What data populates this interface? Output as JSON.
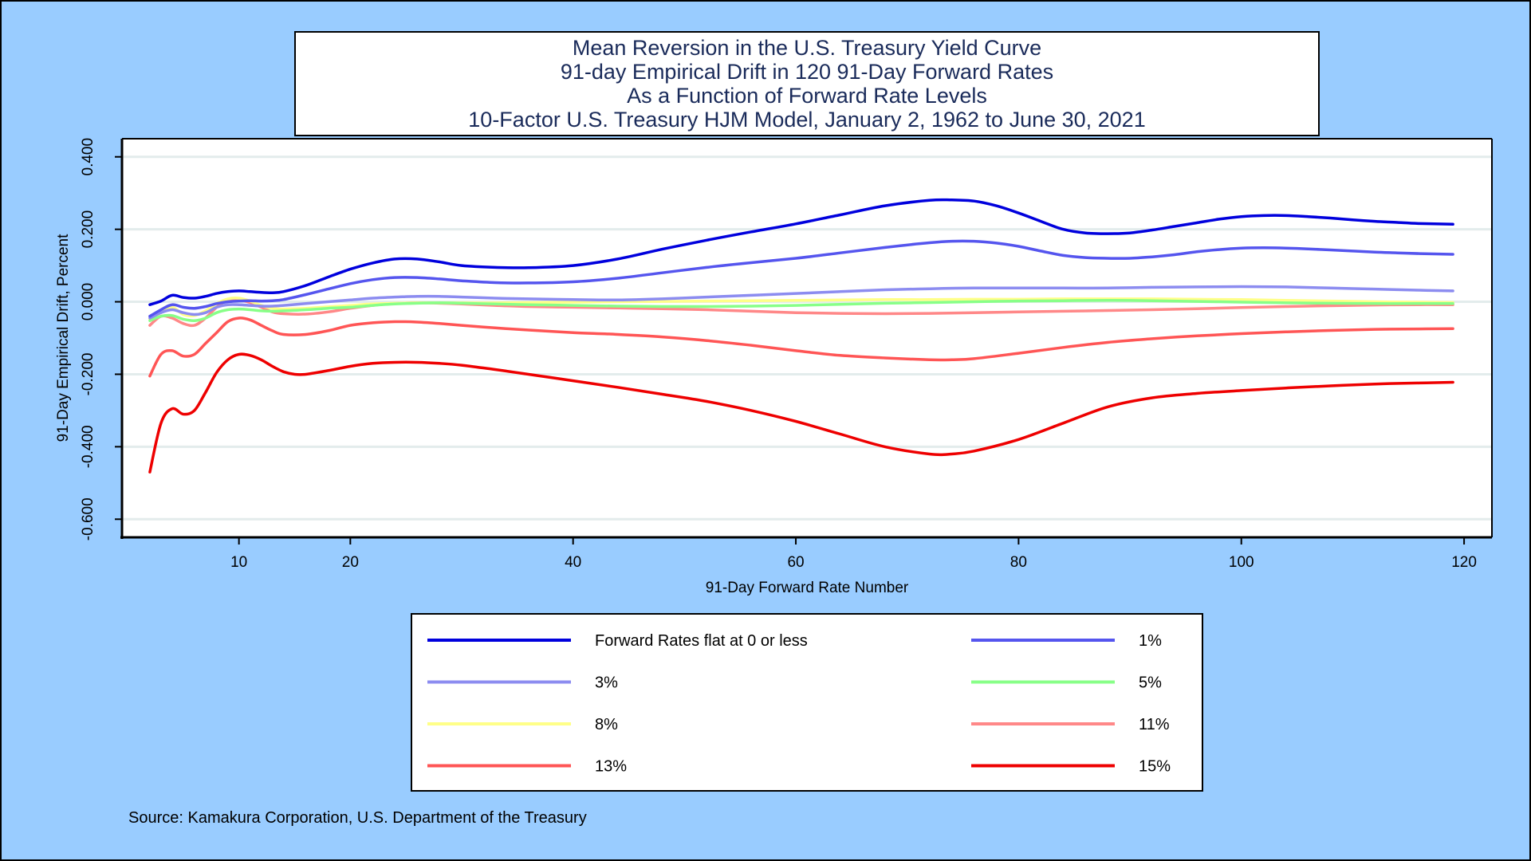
{
  "chart_data": {
    "type": "line",
    "title_lines": [
      "Mean Reversion in the U.S. Treasury Yield Curve",
      "91-day Empirical Drift in 120 91-Day Forward Rates",
      "As a Function of Forward Rate Levels",
      "10-Factor U.S. Treasury HJM Model, January 2, 1962 to June 30, 2021"
    ],
    "xlabel": "91-Day Forward Rate Number",
    "ylabel": "91-Day Empirical Drift, Percent",
    "xlim": [
      -0.5,
      122.5
    ],
    "ylim": [
      -0.65,
      0.45
    ],
    "xticks": [
      10,
      20,
      40,
      60,
      80,
      100,
      120
    ],
    "xtick_labels": [
      "10",
      "20",
      "40",
      "60",
      "80",
      "100",
      "120"
    ],
    "yticks": [
      0.4,
      0.2,
      0.0,
      -0.2,
      -0.4,
      -0.6
    ],
    "ytick_labels": [
      "0.400",
      "0.200",
      "0.000",
      "-0.200",
      "-0.400",
      "-0.600"
    ],
    "grid": "horizontal",
    "source": "Source: Kamakura Corporation, U.S. Department of the Treasury",
    "series": [
      {
        "name": "Forward Rates flat at 0 or less",
        "color": "#0000dd",
        "x": [
          2,
          3,
          4,
          5,
          6,
          7,
          8,
          9,
          10,
          11,
          12,
          13,
          14,
          16,
          18,
          20,
          22,
          24,
          26,
          28,
          30,
          33,
          36,
          40,
          44,
          48,
          52,
          56,
          60,
          64,
          68,
          72,
          74,
          76,
          78,
          80,
          82,
          84,
          86,
          88,
          90,
          92,
          94,
          96,
          98,
          100,
          102,
          104,
          106,
          108,
          110,
          112,
          114,
          116,
          119
        ],
        "y": [
          -0.008,
          0.002,
          0.018,
          0.012,
          0.01,
          0.015,
          0.023,
          0.028,
          0.03,
          0.028,
          0.026,
          0.025,
          0.028,
          0.045,
          0.068,
          0.09,
          0.107,
          0.118,
          0.118,
          0.11,
          0.1,
          0.095,
          0.094,
          0.1,
          0.118,
          0.145,
          0.17,
          0.193,
          0.215,
          0.24,
          0.265,
          0.28,
          0.281,
          0.278,
          0.265,
          0.245,
          0.222,
          0.2,
          0.19,
          0.188,
          0.19,
          0.198,
          0.208,
          0.218,
          0.228,
          0.235,
          0.238,
          0.238,
          0.235,
          0.231,
          0.226,
          0.222,
          0.219,
          0.216,
          0.214
        ]
      },
      {
        "name": "1%",
        "color": "#5555ee",
        "x": [
          2,
          3,
          4,
          5,
          6,
          7,
          8,
          9,
          10,
          11,
          12,
          13,
          14,
          16,
          18,
          20,
          22,
          24,
          26,
          28,
          30,
          33,
          36,
          40,
          44,
          48,
          52,
          56,
          60,
          64,
          68,
          72,
          74,
          76,
          78,
          80,
          82,
          84,
          86,
          88,
          90,
          92,
          94,
          96,
          98,
          100,
          102,
          104,
          106,
          108,
          110,
          112,
          114,
          116,
          119
        ],
        "y": [
          -0.04,
          -0.022,
          -0.008,
          -0.015,
          -0.018,
          -0.013,
          -0.005,
          0.0,
          0.002,
          0.003,
          0.002,
          0.003,
          0.006,
          0.02,
          0.035,
          0.05,
          0.061,
          0.067,
          0.067,
          0.063,
          0.058,
          0.053,
          0.052,
          0.055,
          0.065,
          0.08,
          0.095,
          0.108,
          0.12,
          0.135,
          0.15,
          0.163,
          0.167,
          0.167,
          0.162,
          0.153,
          0.14,
          0.128,
          0.122,
          0.12,
          0.12,
          0.124,
          0.13,
          0.138,
          0.144,
          0.148,
          0.149,
          0.148,
          0.146,
          0.143,
          0.14,
          0.137,
          0.135,
          0.133,
          0.131
        ]
      },
      {
        "name": "3%",
        "color": "#8c8cf0",
        "x": [
          2,
          3,
          4,
          5,
          6,
          7,
          8,
          9,
          10,
          11,
          12,
          13,
          14,
          16,
          18,
          20,
          22,
          24,
          26,
          28,
          30,
          33,
          36,
          40,
          44,
          48,
          52,
          56,
          60,
          64,
          68,
          72,
          76,
          80,
          84,
          88,
          92,
          96,
          100,
          104,
          108,
          112,
          116,
          119
        ],
        "y": [
          -0.045,
          -0.03,
          -0.022,
          -0.03,
          -0.035,
          -0.03,
          -0.015,
          -0.008,
          -0.008,
          -0.01,
          -0.012,
          -0.012,
          -0.01,
          -0.005,
          0.0,
          0.005,
          0.01,
          0.013,
          0.015,
          0.015,
          0.013,
          0.01,
          0.008,
          0.006,
          0.005,
          0.008,
          0.013,
          0.018,
          0.023,
          0.028,
          0.033,
          0.036,
          0.038,
          0.038,
          0.038,
          0.038,
          0.04,
          0.041,
          0.042,
          0.041,
          0.038,
          0.035,
          0.032,
          0.03
        ]
      },
      {
        "name": "5%",
        "color": "#88ff88",
        "x": [
          2,
          3,
          4,
          5,
          6,
          7,
          8,
          9,
          10,
          11,
          12,
          13,
          14,
          16,
          18,
          20,
          22,
          24,
          26,
          28,
          30,
          33,
          36,
          40,
          44,
          48,
          52,
          56,
          60,
          64,
          68,
          72,
          76,
          80,
          84,
          88,
          92,
          96,
          100,
          104,
          108,
          112,
          116,
          119
        ],
        "y": [
          -0.052,
          -0.04,
          -0.038,
          -0.048,
          -0.052,
          -0.045,
          -0.03,
          -0.022,
          -0.02,
          -0.022,
          -0.025,
          -0.026,
          -0.025,
          -0.022,
          -0.018,
          -0.015,
          -0.01,
          -0.006,
          -0.004,
          -0.003,
          -0.004,
          -0.006,
          -0.008,
          -0.01,
          -0.012,
          -0.013,
          -0.013,
          -0.012,
          -0.01,
          -0.007,
          -0.004,
          -0.002,
          0.0,
          0.002,
          0.003,
          0.004,
          0.003,
          0.001,
          -0.001,
          -0.003,
          -0.004,
          -0.005,
          -0.005,
          -0.005
        ]
      },
      {
        "name": "8%",
        "color": "#ffff88",
        "x": [
          2,
          3,
          4,
          5,
          6,
          7,
          8,
          9,
          10,
          11,
          12,
          13,
          14,
          16,
          18,
          20,
          22,
          24,
          26,
          28,
          30,
          33,
          36,
          40,
          44,
          48,
          52,
          56,
          60,
          64,
          68,
          72,
          76,
          80,
          84,
          88,
          92,
          96,
          100,
          104,
          108,
          112,
          116,
          119
        ],
        "y": [
          -0.048,
          -0.03,
          -0.015,
          -0.035,
          -0.038,
          -0.025,
          -0.005,
          0.008,
          0.01,
          0.002,
          -0.01,
          -0.018,
          -0.02,
          -0.018,
          -0.014,
          -0.01,
          -0.006,
          -0.004,
          -0.003,
          -0.003,
          -0.003,
          -0.003,
          -0.002,
          -0.001,
          0.0,
          0.001,
          0.002,
          0.003,
          0.004,
          0.005,
          0.006,
          0.006,
          0.007,
          0.007,
          0.008,
          0.008,
          0.008,
          0.007,
          0.006,
          0.004,
          0.002,
          0.0,
          -0.001,
          -0.002
        ]
      },
      {
        "name": "11%",
        "color": "#ff8888",
        "x": [
          2,
          3,
          4,
          5,
          6,
          7,
          8,
          9,
          10,
          11,
          12,
          13,
          14,
          16,
          18,
          20,
          22,
          24,
          26,
          28,
          30,
          33,
          36,
          40,
          44,
          48,
          52,
          56,
          60,
          64,
          68,
          72,
          76,
          80,
          84,
          88,
          92,
          96,
          100,
          104,
          108,
          112,
          116,
          119
        ],
        "y": [
          -0.065,
          -0.04,
          -0.045,
          -0.06,
          -0.065,
          -0.045,
          -0.015,
          0.005,
          0.005,
          -0.002,
          -0.015,
          -0.028,
          -0.033,
          -0.034,
          -0.028,
          -0.018,
          -0.01,
          -0.005,
          -0.003,
          -0.004,
          -0.006,
          -0.01,
          -0.013,
          -0.015,
          -0.017,
          -0.019,
          -0.022,
          -0.026,
          -0.03,
          -0.032,
          -0.033,
          -0.032,
          -0.03,
          -0.028,
          -0.026,
          -0.024,
          -0.022,
          -0.019,
          -0.016,
          -0.013,
          -0.011,
          -0.009,
          -0.008,
          -0.008
        ]
      },
      {
        "name": "13%",
        "color": "#ff5555",
        "x": [
          2,
          3,
          4,
          5,
          6,
          7,
          8,
          9,
          10,
          11,
          12,
          13,
          14,
          16,
          18,
          20,
          22,
          24,
          26,
          28,
          30,
          33,
          36,
          40,
          44,
          48,
          52,
          56,
          60,
          64,
          68,
          72,
          74,
          76,
          80,
          84,
          88,
          92,
          96,
          100,
          104,
          108,
          112,
          116,
          119
        ],
        "y": [
          -0.205,
          -0.145,
          -0.135,
          -0.15,
          -0.145,
          -0.115,
          -0.085,
          -0.055,
          -0.045,
          -0.05,
          -0.065,
          -0.08,
          -0.09,
          -0.09,
          -0.08,
          -0.065,
          -0.058,
          -0.055,
          -0.056,
          -0.06,
          -0.065,
          -0.072,
          -0.078,
          -0.085,
          -0.09,
          -0.097,
          -0.107,
          -0.12,
          -0.135,
          -0.148,
          -0.155,
          -0.16,
          -0.16,
          -0.157,
          -0.142,
          -0.126,
          -0.112,
          -0.102,
          -0.094,
          -0.088,
          -0.083,
          -0.079,
          -0.076,
          -0.075,
          -0.074
        ]
      },
      {
        "name": "15%",
        "color": "#ee0000",
        "x": [
          2,
          3,
          4,
          5,
          6,
          7,
          8,
          9,
          10,
          11,
          12,
          13,
          14,
          15,
          16,
          18,
          20,
          22,
          24,
          26,
          28,
          30,
          33,
          36,
          40,
          44,
          48,
          52,
          56,
          60,
          64,
          68,
          72,
          74,
          76,
          80,
          84,
          88,
          92,
          96,
          100,
          104,
          108,
          112,
          116,
          119
        ],
        "y": [
          -0.47,
          -0.335,
          -0.295,
          -0.31,
          -0.3,
          -0.25,
          -0.195,
          -0.16,
          -0.145,
          -0.148,
          -0.16,
          -0.178,
          -0.193,
          -0.2,
          -0.2,
          -0.19,
          -0.178,
          -0.17,
          -0.167,
          -0.167,
          -0.17,
          -0.175,
          -0.187,
          -0.2,
          -0.218,
          -0.236,
          -0.255,
          -0.275,
          -0.3,
          -0.33,
          -0.365,
          -0.4,
          -0.42,
          -0.42,
          -0.412,
          -0.38,
          -0.335,
          -0.29,
          -0.265,
          -0.253,
          -0.245,
          -0.238,
          -0.232,
          -0.227,
          -0.224,
          -0.222
        ]
      }
    ]
  }
}
